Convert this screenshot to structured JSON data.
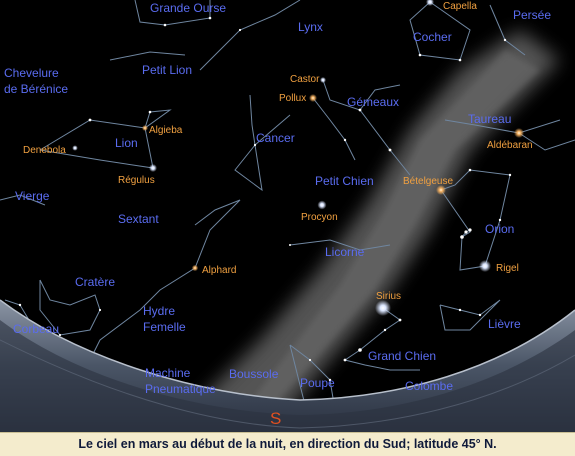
{
  "caption": "Le ciel en mars au début de la nuit, en direction du Sud; latitude 45° N.",
  "cardinal": "S",
  "constellations": {
    "grande_ourse": "Grande Ourse",
    "lynx": "Lynx",
    "persee": "Persée",
    "cocher": "Cocher",
    "chevelure_1": "Chevelure",
    "chevelure_2": "de Bérénice",
    "petit_lion": "Petit Lion",
    "gemeaux": "Gémeaux",
    "cancer": "Cancer",
    "taureau": "Taureau",
    "lion": "Lion",
    "petit_chien": "Petit Chien",
    "vierge": "Vierge",
    "sextant": "Sextant",
    "orion": "Orion",
    "licorne": "Licorne",
    "cratere": "Cratère",
    "hydre_1": "Hydre",
    "hydre_2": "Femelle",
    "lievre": "Lièvre",
    "corbeau": "Corbeau",
    "grand_chien": "Grand Chien",
    "machine_1": "Machine",
    "machine_2": "Pneumatique",
    "boussole": "Boussole",
    "poupe": "Poupe",
    "colombe": "Colombe"
  },
  "stars": {
    "capella": "Capella",
    "castor": "Castor",
    "pollux": "Pollux",
    "algieba": "Algieba",
    "denebola": "Denebola",
    "regulus": "Régulus",
    "aldebaran": "Aldébaran",
    "betelgeuse": "Bételgeuse",
    "procyon": "Procyon",
    "alphard": "Alphard",
    "rigel": "Rigel",
    "sirius": "Sirius"
  },
  "colors": {
    "sky": "#000000",
    "constellation_line": "#6f86a0",
    "constellation_label": "#5a6cf0",
    "star_label": "#f0a040",
    "cardinal": "#e05020",
    "caption_bg": "#f4eccd"
  }
}
